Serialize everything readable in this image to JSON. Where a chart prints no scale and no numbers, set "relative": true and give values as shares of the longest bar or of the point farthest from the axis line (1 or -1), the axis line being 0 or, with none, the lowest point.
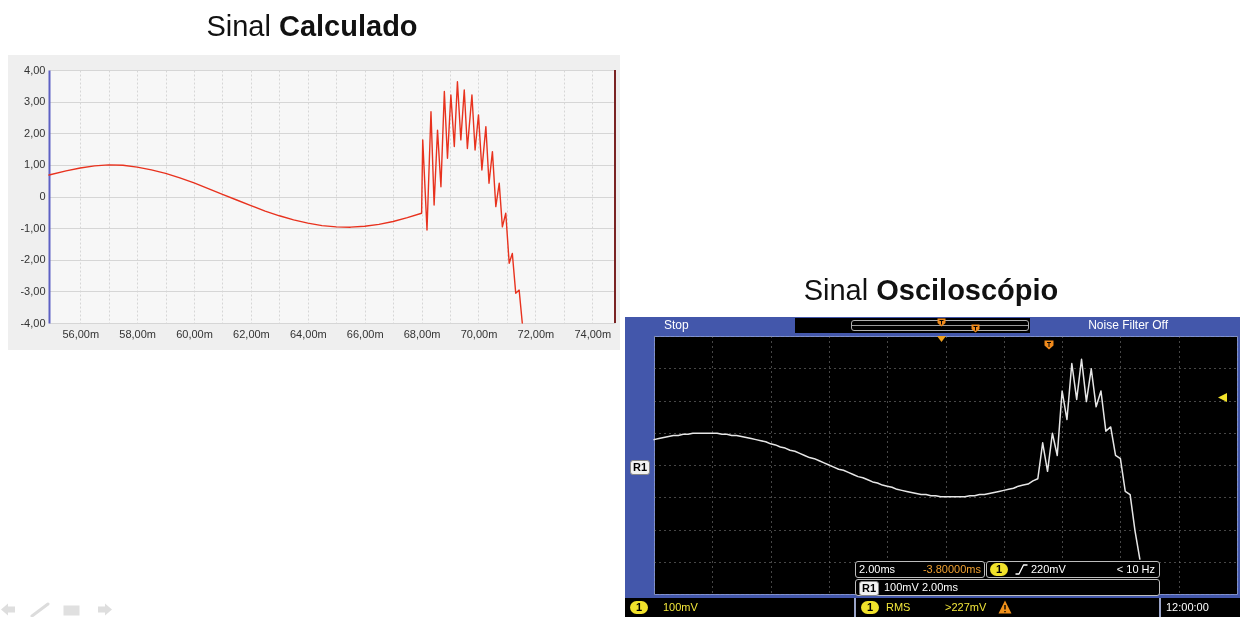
{
  "chart_data": [
    {
      "type": "line",
      "title": "Sinal Calculado",
      "color": "#e8321e",
      "x": [
        54.9,
        55.5,
        56,
        56.5,
        57,
        57.5,
        58,
        58.5,
        59,
        59.5,
        60,
        60.5,
        61,
        61.5,
        62,
        62.5,
        63,
        63.5,
        64,
        64.5,
        65,
        65.5,
        66,
        66.5,
        67,
        67.5,
        68,
        68.04,
        68.19,
        68.33,
        68.44,
        68.56,
        68.68,
        68.8,
        68.91,
        69.03,
        69.15,
        69.26,
        69.38,
        69.5,
        69.61,
        69.77,
        69.88,
        70,
        70.12,
        70.26,
        70.37,
        70.49,
        70.61,
        70.73,
        70.84,
        70.96,
        71.08,
        71.19,
        71.31,
        71.43,
        71.54
      ],
      "values": [
        0.68,
        0.81,
        0.9,
        0.97,
        1,
        0.99,
        0.93,
        0.84,
        0.73,
        0.59,
        0.43,
        0.25,
        0.07,
        -0.11,
        -0.29,
        -0.46,
        -0.61,
        -0.74,
        -0.84,
        -0.92,
        -0.96,
        -0.97,
        -0.94,
        -0.88,
        -0.79,
        -0.67,
        -0.53,
        1.79,
        -1.06,
        2.68,
        -0.27,
        2.1,
        0.31,
        3.32,
        1.21,
        3.21,
        1.58,
        3.63,
        1.79,
        3.37,
        1.52,
        3.21,
        1.47,
        2.58,
        0.84,
        2.21,
        0.42,
        1.42,
        -0.32,
        0.42,
        -0.96,
        -0.53,
        -2.11,
        -1.8,
        -3.06,
        -2.96,
        -4
      ],
      "xlim": [
        54.9,
        74.8
      ],
      "ylim": [
        -4,
        4
      ],
      "xticks": [
        {
          "value": 56,
          "label": "56,00m"
        },
        {
          "value": 57,
          "label": null
        },
        {
          "value": 58,
          "label": "58,00m"
        },
        {
          "value": 59,
          "label": null
        },
        {
          "value": 60,
          "label": "60,00m"
        },
        {
          "value": 61,
          "label": null
        },
        {
          "value": 62,
          "label": "62,00m"
        },
        {
          "value": 63,
          "label": null
        },
        {
          "value": 64,
          "label": "64,00m"
        },
        {
          "value": 65,
          "label": null
        },
        {
          "value": 66,
          "label": "66,00m"
        },
        {
          "value": 67,
          "label": null
        },
        {
          "value": 68,
          "label": "68,00m"
        },
        {
          "value": 69,
          "label": null
        },
        {
          "value": 70,
          "label": "70,00m"
        },
        {
          "value": 71,
          "label": null
        },
        {
          "value": 72,
          "label": "72,00m"
        },
        {
          "value": 73,
          "label": null
        },
        {
          "value": 74,
          "label": "74,00m"
        }
      ],
      "yticks": [
        {
          "value": -4,
          "label": "-4,00"
        },
        {
          "value": -3,
          "label": "-3,00"
        },
        {
          "value": -2,
          "label": "-2,00"
        },
        {
          "value": -1,
          "label": "-1,00"
        },
        0,
        {
          "value": 1,
          "label": "1,00"
        },
        {
          "value": 2,
          "label": "2,00"
        },
        {
          "value": 3,
          "label": "3,00"
        },
        {
          "value": 4,
          "label": "4,00"
        }
      ],
      "grid": true,
      "ref_lines": [
        {
          "axis": "x",
          "value": 74.8,
          "color": "#7a2424"
        }
      ]
    },
    {
      "type": "line",
      "title": "Sinal Osciloscópio",
      "color": "#e6e6e6",
      "relative": true,
      "grid": true,
      "categories": [
        null,
        null,
        null,
        null,
        null,
        null,
        null,
        null,
        null,
        null,
        null,
        null,
        null,
        null,
        null,
        null,
        null,
        null,
        null,
        null,
        null,
        null,
        null,
        null,
        null,
        null,
        null,
        null,
        null,
        null,
        null,
        null,
        null,
        null,
        null,
        null,
        null,
        null,
        null,
        null,
        null,
        null,
        null,
        null,
        null,
        null,
        null,
        null,
        null,
        null,
        null,
        null,
        null,
        null,
        null,
        null,
        null,
        null,
        null,
        null,
        null,
        null,
        null,
        null,
        null,
        null,
        null,
        null,
        null,
        null,
        null,
        null,
        null,
        null,
        null,
        null,
        null,
        null,
        null,
        null,
        null,
        null,
        null,
        null,
        null,
        null,
        null,
        null,
        null,
        null,
        null,
        null,
        null,
        null,
        null,
        null,
        null,
        null,
        null,
        null,
        null,
        null,
        null,
        null,
        null,
        null,
        null,
        null,
        null,
        null,
        null,
        null,
        null,
        null,
        null,
        null,
        null,
        null,
        null,
        null,
        null
      ],
      "values": [
        0.24,
        0.25,
        0.26,
        0.27,
        0.28,
        0.28,
        0.29,
        0.29,
        0.3,
        0.3,
        0.3,
        0.3,
        0.3,
        0.3,
        0.29,
        0.29,
        0.28,
        0.28,
        0.27,
        0.26,
        0.25,
        0.24,
        0.23,
        0.22,
        0.2,
        0.19,
        0.17,
        0.16,
        0.14,
        0.13,
        0.11,
        0.09,
        0.07,
        0.06,
        0.04,
        0.02,
        0,
        -0.02,
        -0.04,
        -0.05,
        -0.07,
        -0.09,
        -0.11,
        -0.12,
        -0.14,
        -0.16,
        -0.17,
        -0.19,
        -0.2,
        -0.21,
        -0.23,
        -0.24,
        -0.25,
        -0.26,
        -0.27,
        -0.28,
        -0.28,
        -0.29,
        -0.29,
        -0.3,
        -0.3,
        -0.3,
        -0.3,
        -0.3,
        -0.3,
        -0.29,
        -0.29,
        -0.28,
        -0.28,
        -0.27,
        -0.26,
        -0.25,
        -0.24,
        -0.23,
        -0.22,
        -0.2,
        -0.19,
        -0.18,
        -0.15,
        -0.13,
        0.21,
        -0.06,
        0.3,
        0.09,
        0.7,
        0.43,
        0.96,
        0.62,
        1,
        0.6,
        0.91,
        0.55,
        0.7,
        0.32,
        0.36,
        0.09,
        0.06,
        -0.25,
        -0.28,
        -0.62,
        -0.89,
        null,
        null,
        null,
        null,
        null,
        null,
        null,
        null,
        null,
        null,
        null,
        null,
        null,
        null,
        null,
        null,
        null,
        null,
        null,
        null
      ],
      "annotations": [
        "Stop",
        "Noise Filter Off",
        "R1",
        "2.00ms",
        "-3.80000ms",
        "1",
        "220mV",
        "< 10 Hz",
        "R1",
        "100mV 2.00ms",
        "1",
        "100mV",
        "1",
        "RMS",
        ">227mV",
        "12:00:00"
      ]
    }
  ]
}
